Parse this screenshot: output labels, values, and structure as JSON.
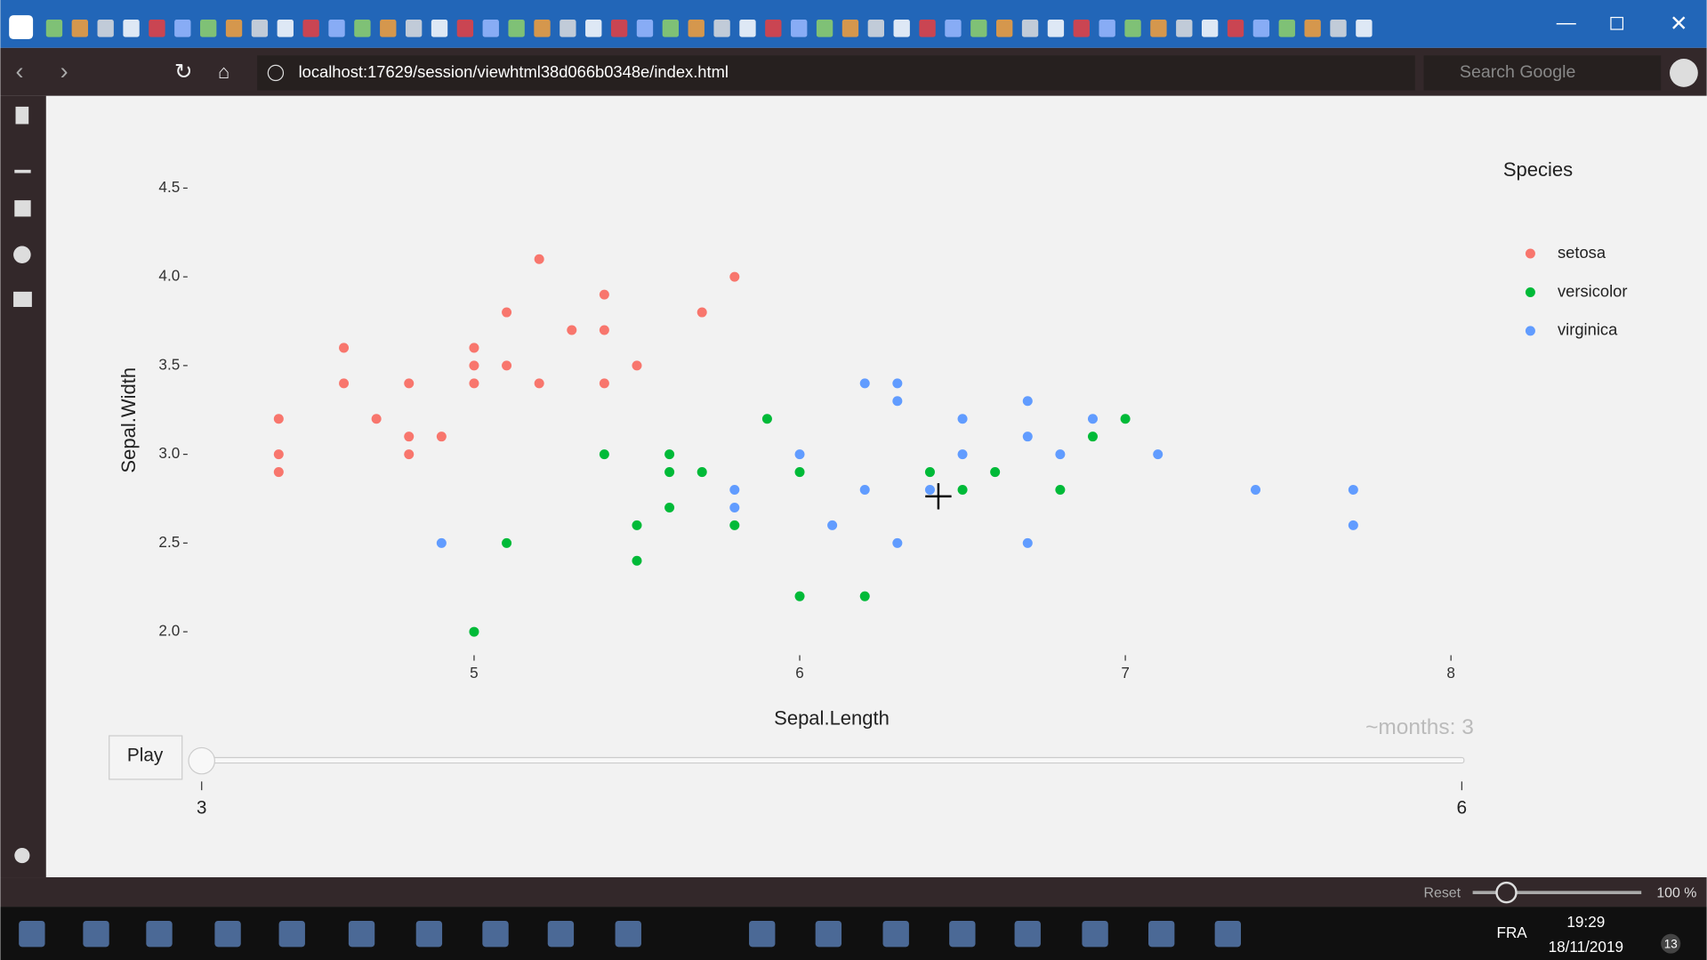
{
  "browser": {
    "url": "localhost:17629/session/viewhtml38d066b0348e/index.html",
    "search_placeholder": "Search Google",
    "reset": "Reset",
    "zoom": "100 %"
  },
  "chart_data": {
    "type": "scatter",
    "x_label": "Sepal.Length",
    "y_label": "Sepal.Width",
    "legend_title": "Species",
    "legend": "right",
    "grid": false,
    "xlim": [
      4.13,
      8.04
    ],
    "ylim": [
      1.88,
      4.64
    ],
    "xticks": [
      5,
      6,
      7,
      8
    ],
    "yticks": [
      {
        "value": 2,
        "label": "2.0"
      },
      2.5,
      {
        "value": 3,
        "label": "3.0"
      },
      3.5,
      {
        "value": 4,
        "label": "4.0"
      },
      4.5
    ],
    "series": [
      {
        "name": "setosa",
        "color": "#f8766d",
        "x": [
          4.4,
          4.4,
          4.4,
          4.6,
          4.6,
          4.7,
          4.8,
          4.8,
          4.8,
          4.9,
          5.0,
          5.0,
          5.0,
          5.1,
          5.1,
          5.2,
          5.2,
          5.3,
          5.4,
          5.4,
          5.4,
          5.5,
          5.7,
          5.8
        ],
        "values": [
          3.2,
          3.0,
          2.9,
          3.6,
          3.4,
          3.2,
          3.4,
          3.1,
          3.0,
          3.1,
          3.6,
          3.5,
          3.4,
          3.8,
          3.5,
          4.1,
          3.4,
          3.7,
          3.9,
          3.7,
          3.4,
          3.5,
          3.8,
          4.0
        ]
      },
      {
        "name": "versicolor",
        "color": "#00ba38",
        "x": [
          5.0,
          5.1,
          5.4,
          5.5,
          5.5,
          5.6,
          5.6,
          5.6,
          5.7,
          5.8,
          5.9,
          6.0,
          6.0,
          6.2,
          6.4,
          6.5,
          6.6,
          6.8,
          6.9,
          7.0
        ],
        "values": [
          2.0,
          2.5,
          3.0,
          2.6,
          2.4,
          3.0,
          2.9,
          2.7,
          2.9,
          2.6,
          3.2,
          2.9,
          2.2,
          2.2,
          2.9,
          2.8,
          2.9,
          2.8,
          3.1,
          3.2
        ]
      },
      {
        "name": "virginica",
        "color": "#619cff",
        "x": [
          4.9,
          5.8,
          5.8,
          6.0,
          6.1,
          6.2,
          6.2,
          6.3,
          6.3,
          6.3,
          6.4,
          6.5,
          6.5,
          6.7,
          6.7,
          6.7,
          6.8,
          6.9,
          7.1,
          7.4,
          7.7,
          7.7
        ],
        "values": [
          2.5,
          2.8,
          2.7,
          3.0,
          2.6,
          3.4,
          2.8,
          3.4,
          3.3,
          2.5,
          2.8,
          3.2,
          3.0,
          3.3,
          3.1,
          2.5,
          3.0,
          3.2,
          3.0,
          2.8,
          2.8,
          2.6
        ]
      }
    ]
  },
  "slider": {
    "button": "Play",
    "current": "~months: 3",
    "value": 3,
    "lim": [
      3,
      6
    ],
    "ticks": [
      3,
      6
    ]
  },
  "taskbar": {
    "language": "FRA",
    "time": "19:29",
    "date": "18/11/2019",
    "notifications": 13
  }
}
